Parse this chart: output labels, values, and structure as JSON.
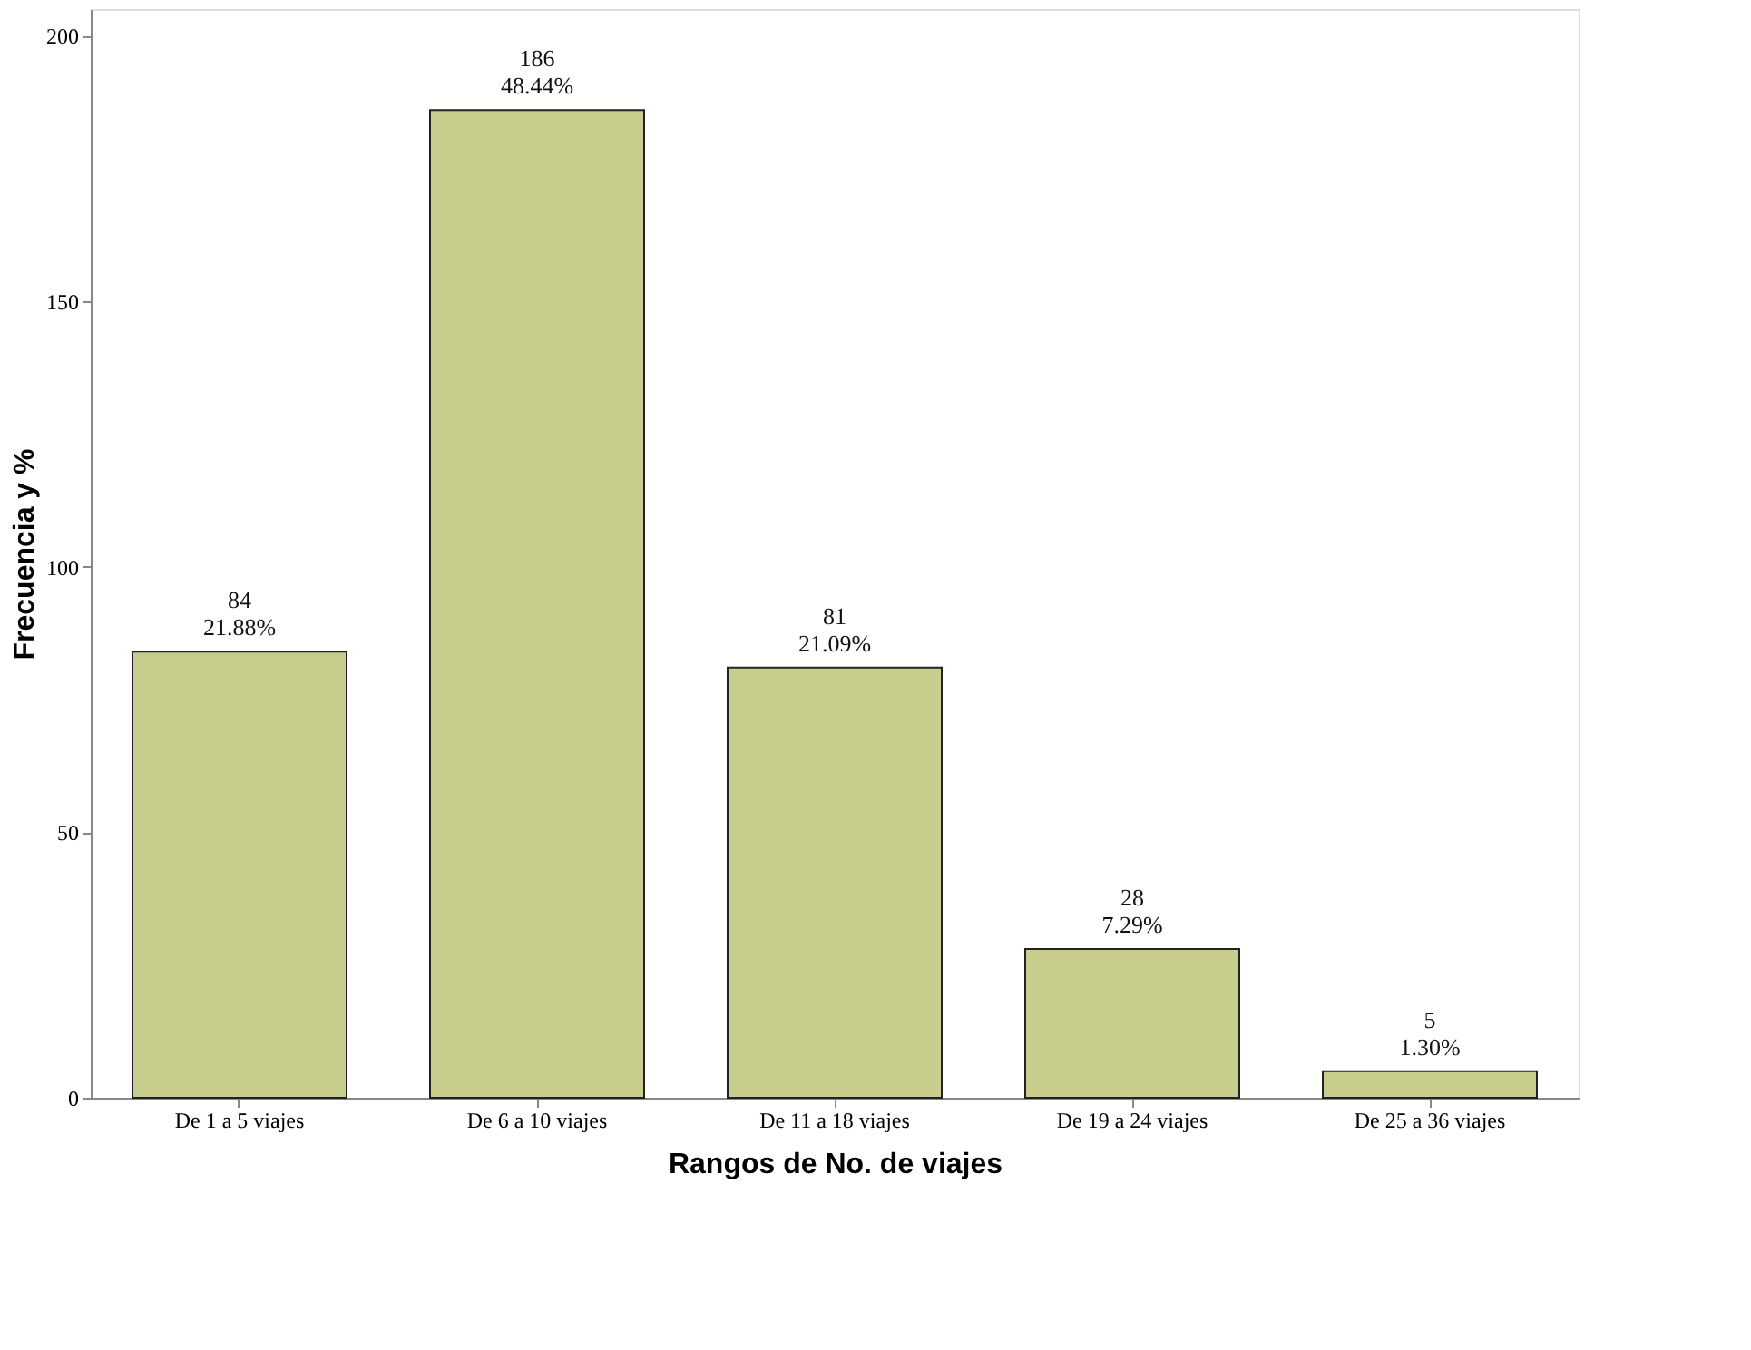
{
  "chart_data": {
    "type": "bar",
    "xlabel": "Rangos de No. de viajes",
    "ylabel": "Frecuencia y %",
    "categories": [
      "De 1 a 5 viajes",
      "De 6 a 10 viajes",
      "De 11 a 18 viajes",
      "De 19 a 24 viajes",
      "De 25 a 36 viajes"
    ],
    "values": [
      84,
      186,
      81,
      28,
      5
    ],
    "color": "#c8cc8c",
    "value_labels": [
      "84\n21.88%",
      "186\n48.44%",
      "81\n21.09%",
      "28\n7.29%",
      "5\n1.30%"
    ],
    "ylim": [
      0,
      205
    ],
    "yticks": [
      0,
      50,
      100,
      150,
      200
    ],
    "grid": false
  }
}
